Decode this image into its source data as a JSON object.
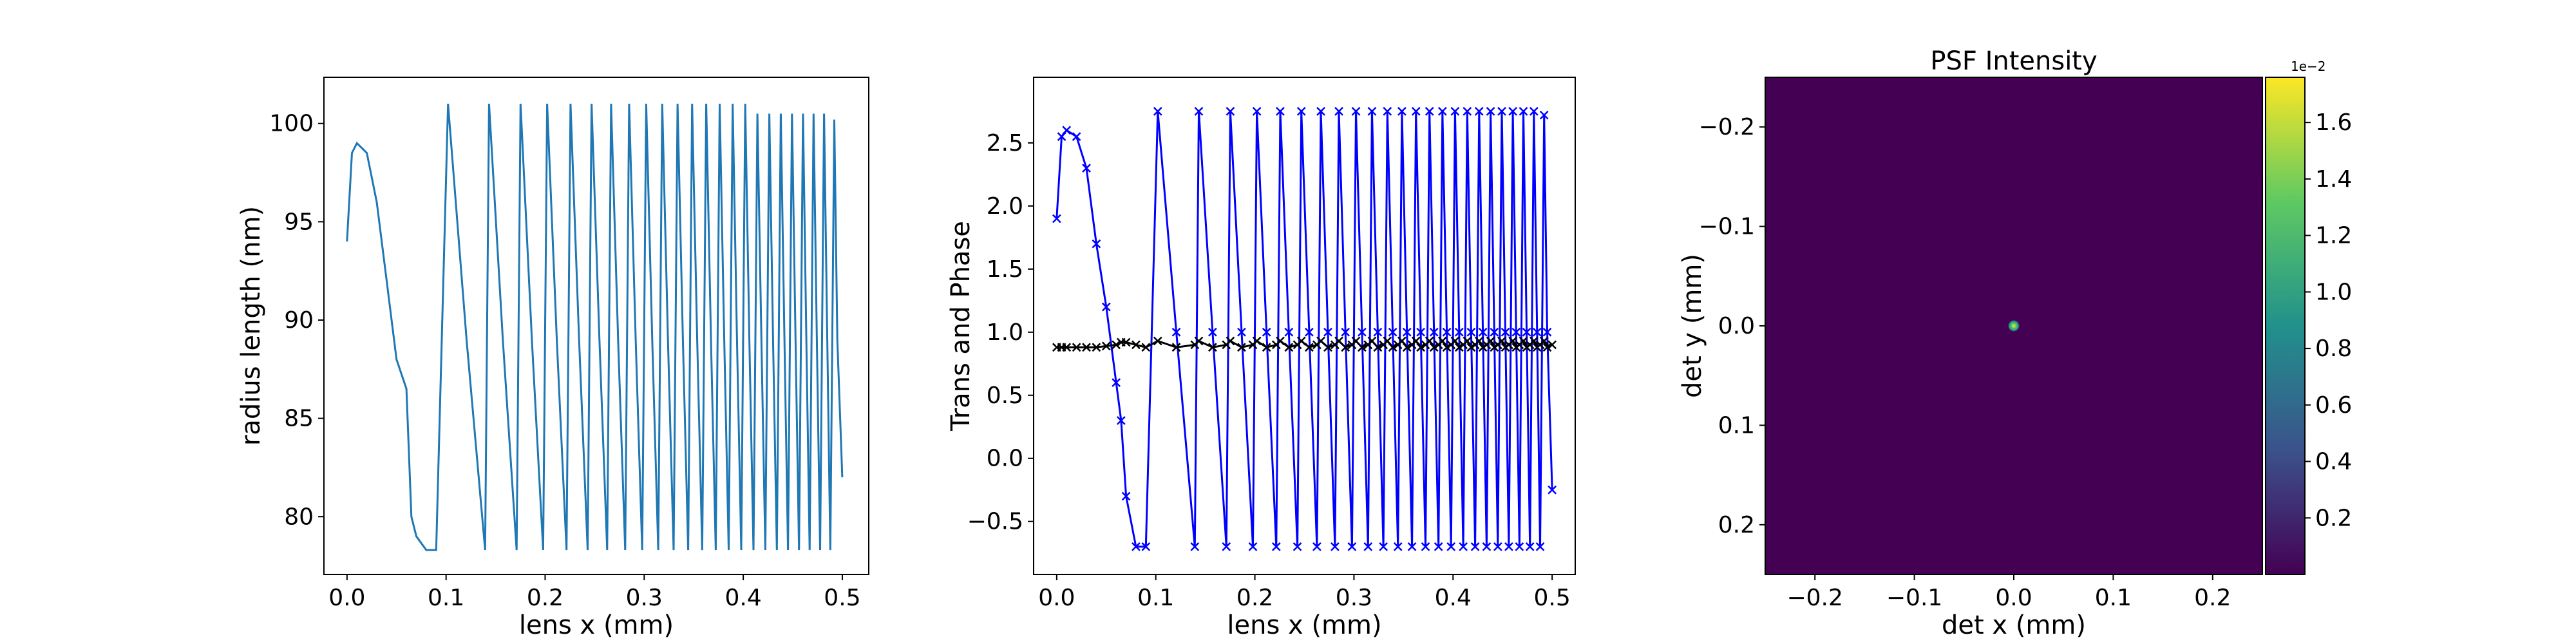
{
  "chart_data": [
    {
      "type": "line",
      "xlabel": "lens x (mm)",
      "ylabel": "radius length (nm)",
      "xlim": [
        -0.0233,
        0.5267
      ],
      "ylim": [
        77.06,
        102.35
      ],
      "xticks": [
        {
          "value": 0.0,
          "label": "0.0"
        },
        0.1,
        0.2,
        0.3,
        0.4,
        0.5
      ],
      "yticks": [
        80,
        85,
        90,
        95,
        100
      ],
      "x": [
        0,
        0.005,
        0.01,
        0.02,
        0.03,
        0.04,
        0.05,
        0.06,
        0.065,
        0.07,
        0.08,
        0.09,
        0.102,
        0.1207,
        0.1394,
        0.1434,
        0.1573,
        0.1712,
        0.1752,
        0.1866,
        0.198,
        0.202,
        0.2118,
        0.2216,
        0.2256,
        0.2343,
        0.2429,
        0.2469,
        0.2548,
        0.2626,
        0.2666,
        0.2737,
        0.2808,
        0.2848,
        0.2914,
        0.298,
        0.302,
        0.3081,
        0.3142,
        0.3182,
        0.324,
        0.3297,
        0.3337,
        0.3391,
        0.3444,
        0.3484,
        0.3535,
        0.3586,
        0.3626,
        0.3674,
        0.3722,
        0.3762,
        0.3808,
        0.3853,
        0.3893,
        0.3937,
        0.398,
        0.402,
        0.4062,
        0.4103,
        0.4143,
        0.4183,
        0.4223,
        0.4263,
        0.4301,
        0.4339,
        0.4379,
        0.4416,
        0.4452,
        0.4492,
        0.4528,
        0.4563,
        0.4603,
        0.4637,
        0.467,
        0.471,
        0.4743,
        0.4776,
        0.4816,
        0.4848,
        0.4879,
        0.4919,
        0.495,
        0.5
      ],
      "series": [
        {
          "color": "#1f77b4",
          "marker": false,
          "values": [
            94,
            98.5,
            99,
            98.5,
            96,
            92,
            88,
            86.5,
            80,
            79,
            78.3,
            78.3,
            101,
            89,
            78.3,
            101,
            89,
            78.3,
            101,
            89,
            78.3,
            101,
            89,
            78.3,
            101,
            89,
            78.3,
            101,
            89,
            78.3,
            101,
            89,
            78.3,
            101,
            89,
            78.3,
            101,
            89,
            78.3,
            101,
            89,
            78.3,
            101,
            89,
            78.3,
            101,
            89,
            78.3,
            101,
            89,
            78.3,
            101,
            89,
            78.3,
            101,
            89,
            78.3,
            101,
            89,
            78.3,
            100.5,
            89,
            78.3,
            100.5,
            89,
            78.3,
            100.5,
            89,
            78.3,
            100.5,
            89,
            78.3,
            100.5,
            89,
            78.3,
            100.5,
            89,
            78.3,
            100.5,
            89,
            78.3,
            100.2,
            89,
            82
          ]
        }
      ]
    },
    {
      "type": "line",
      "xlabel": "lens x (mm)",
      "ylabel": "Trans and Phase",
      "xlim": [
        -0.0233,
        0.5233
      ],
      "ylim": [
        -0.92,
        3.02
      ],
      "xticks": [
        {
          "value": 0.0,
          "label": "0.0"
        },
        0.1,
        0.2,
        0.3,
        0.4,
        0.5
      ],
      "yticks": [
        {
          "value": -0.5,
          "label": "−0.5"
        },
        {
          "value": 0.0,
          "label": "0.0"
        },
        0.5,
        {
          "value": 1.0,
          "label": "1.0"
        },
        1.5,
        {
          "value": 2.0,
          "label": "2.0"
        },
        2.5
      ],
      "x": [
        0,
        0.005,
        0.01,
        0.02,
        0.03,
        0.04,
        0.05,
        0.06,
        0.065,
        0.07,
        0.08,
        0.09,
        0.102,
        0.1207,
        0.1394,
        0.1434,
        0.1573,
        0.1712,
        0.1752,
        0.1866,
        0.198,
        0.202,
        0.2118,
        0.2216,
        0.2256,
        0.2343,
        0.2429,
        0.2469,
        0.2548,
        0.2626,
        0.2666,
        0.2737,
        0.2808,
        0.2848,
        0.2914,
        0.298,
        0.302,
        0.3081,
        0.3142,
        0.3182,
        0.324,
        0.3297,
        0.3337,
        0.3391,
        0.3444,
        0.3484,
        0.3535,
        0.3586,
        0.3626,
        0.3674,
        0.3722,
        0.3762,
        0.3808,
        0.3853,
        0.3893,
        0.3937,
        0.398,
        0.402,
        0.4062,
        0.4103,
        0.4143,
        0.4183,
        0.4223,
        0.4263,
        0.4301,
        0.4339,
        0.4379,
        0.4416,
        0.4452,
        0.4492,
        0.4528,
        0.4563,
        0.4603,
        0.4637,
        0.467,
        0.471,
        0.4743,
        0.4776,
        0.4816,
        0.4848,
        0.4879,
        0.4919,
        0.495,
        0.5
      ],
      "series": [
        {
          "color": "#0000ff",
          "marker": true,
          "values": [
            1.9,
            2.55,
            2.6,
            2.55,
            2.3,
            1.7,
            1.2,
            0.6,
            0.3,
            -0.3,
            -0.7,
            -0.7,
            2.75,
            1.0,
            -0.7,
            2.75,
            1.0,
            -0.7,
            2.75,
            1.0,
            -0.7,
            2.75,
            1.0,
            -0.7,
            2.75,
            1.0,
            -0.7,
            2.75,
            1.0,
            -0.7,
            2.75,
            1.0,
            -0.7,
            2.75,
            1.0,
            -0.7,
            2.75,
            1.0,
            -0.7,
            2.75,
            1.0,
            -0.7,
            2.75,
            1.0,
            -0.7,
            2.75,
            1.0,
            -0.7,
            2.75,
            1.0,
            -0.7,
            2.75,
            1.0,
            -0.7,
            2.75,
            1.0,
            -0.7,
            2.75,
            1.0,
            -0.7,
            2.75,
            1.0,
            -0.7,
            2.75,
            1.0,
            -0.7,
            2.75,
            1.0,
            -0.7,
            2.75,
            1.0,
            -0.7,
            2.75,
            1.0,
            -0.7,
            2.75,
            1.0,
            -0.7,
            2.75,
            1.0,
            -0.7,
            2.72,
            1.0,
            -0.25
          ]
        },
        {
          "color": "#000000",
          "marker": true,
          "values": [
            0.88,
            0.88,
            0.88,
            0.88,
            0.88,
            0.88,
            0.89,
            0.9,
            0.92,
            0.92,
            0.9,
            0.88,
            0.93,
            0.88,
            0.9,
            0.93,
            0.88,
            0.9,
            0.93,
            0.88,
            0.9,
            0.93,
            0.88,
            0.9,
            0.93,
            0.88,
            0.9,
            0.93,
            0.88,
            0.9,
            0.93,
            0.88,
            0.9,
            0.93,
            0.88,
            0.9,
            0.93,
            0.88,
            0.9,
            0.93,
            0.88,
            0.9,
            0.93,
            0.88,
            0.9,
            0.93,
            0.88,
            0.9,
            0.93,
            0.88,
            0.9,
            0.93,
            0.88,
            0.9,
            0.93,
            0.88,
            0.9,
            0.93,
            0.88,
            0.9,
            0.93,
            0.88,
            0.9,
            0.93,
            0.88,
            0.9,
            0.93,
            0.88,
            0.9,
            0.93,
            0.88,
            0.9,
            0.93,
            0.88,
            0.9,
            0.93,
            0.88,
            0.9,
            0.93,
            0.88,
            0.9,
            0.93,
            0.88,
            0.9
          ]
        }
      ]
    },
    {
      "type": "image",
      "title": "PSF Intensity",
      "xlabel": "det x (mm)",
      "ylabel": "det y (mm)",
      "xlim": [
        -0.25,
        0.25
      ],
      "ylim": [
        0.25,
        -0.25
      ],
      "xticks": [
        {
          "value": -0.2,
          "label": "−0.2"
        },
        {
          "value": -0.1,
          "label": "−0.1"
        },
        {
          "value": 0.0,
          "label": "0.0"
        },
        0.1,
        0.2
      ],
      "yticks": [
        {
          "value": -0.2,
          "label": "−0.2"
        },
        {
          "value": -0.1,
          "label": "−0.1"
        },
        {
          "value": 0.0,
          "label": "0.0"
        },
        0.1,
        0.2
      ],
      "peak": {
        "x": 0.0,
        "y": 0.0,
        "value": 1.75
      },
      "clim": [
        0.0,
        1.76
      ],
      "colorbar_offset": "1e−2",
      "cticks": [
        0.2,
        0.4,
        0.6,
        0.8,
        {
          "value": 1.0,
          "label": "1.0"
        },
        1.2,
        1.4,
        1.6
      ]
    }
  ]
}
